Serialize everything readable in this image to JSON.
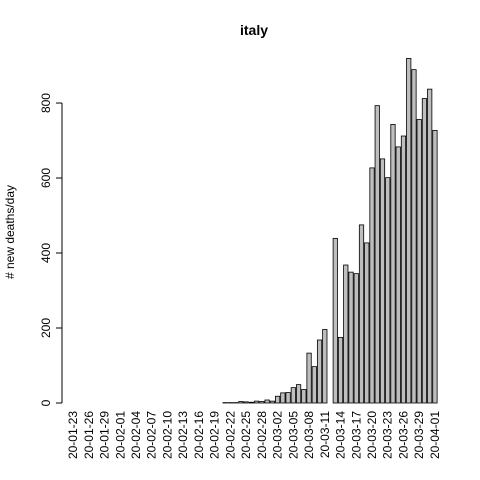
{
  "chart_data": {
    "type": "bar",
    "title": "italy",
    "ylabel": "# new deaths/day",
    "categories": [
      "20-01-23",
      null,
      null,
      "20-01-26",
      null,
      null,
      "20-01-29",
      null,
      null,
      "20-02-01",
      null,
      null,
      "20-02-04",
      null,
      null,
      "20-02-07",
      null,
      null,
      "20-02-10",
      null,
      null,
      "20-02-13",
      null,
      null,
      "20-02-16",
      null,
      null,
      "20-02-19",
      null,
      null,
      "20-02-22",
      null,
      null,
      "20-02-25",
      null,
      null,
      "20-02-28",
      null,
      null,
      "20-03-02",
      null,
      null,
      "20-03-05",
      null,
      null,
      "20-03-08",
      null,
      null,
      "20-03-11",
      null,
      null,
      "20-03-14",
      null,
      null,
      "20-03-17",
      null,
      null,
      "20-03-20",
      null,
      null,
      "20-03-23",
      null,
      null,
      "20-03-26",
      null,
      null,
      "20-03-29",
      null,
      null,
      "20-04-01"
    ],
    "values": [
      0,
      0,
      0,
      0,
      0,
      0,
      0,
      0,
      0,
      0,
      0,
      0,
      0,
      0,
      0,
      0,
      0,
      0,
      0,
      0,
      0,
      0,
      0,
      0,
      0,
      0,
      0,
      0,
      0,
      1,
      1,
      1,
      4,
      3,
      2,
      5,
      4,
      8,
      5,
      18,
      27,
      28,
      41,
      49,
      36,
      133,
      97,
      168,
      196,
      0,
      439,
      175,
      368,
      349,
      345,
      475,
      427,
      627,
      793,
      651,
      601,
      743,
      683,
      712,
      919,
      889,
      756,
      812,
      837,
      727
    ],
    "color": "#bebebe",
    "ylim": [
      0,
      919
    ],
    "yticks": [
      0,
      200,
      400,
      600,
      800
    ]
  }
}
